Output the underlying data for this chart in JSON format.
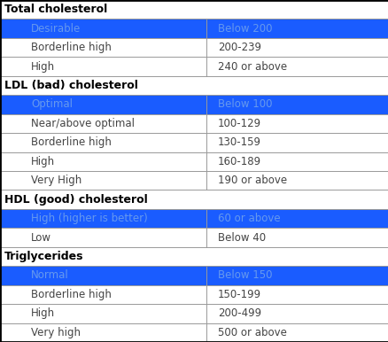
{
  "figsize": [
    4.39,
    3.86
  ],
  "dpi": 100,
  "bg_color": "#ffffff",
  "border_color": "#000000",
  "blue_color": "#1a5cff",
  "normal_text_color": "#444444",
  "blue_text_color": "#6699ee",
  "header_text_color": "#000000",
  "grid_color": "#999999",
  "rows": [
    {
      "type": "header",
      "col1": "Total cholesterol",
      "col2": ""
    },
    {
      "type": "blue",
      "col1": "Desirable",
      "col2": "Below 200"
    },
    {
      "type": "normal",
      "col1": "Borderline high",
      "col2": "200-239"
    },
    {
      "type": "normal",
      "col1": "High",
      "col2": "240 or above"
    },
    {
      "type": "header",
      "col1": "LDL (bad) cholesterol",
      "col2": ""
    },
    {
      "type": "blue",
      "col1": "Optimal",
      "col2": "Below 100"
    },
    {
      "type": "normal",
      "col1": "Near/above optimal",
      "col2": "100-129"
    },
    {
      "type": "normal",
      "col1": "Borderline high",
      "col2": "130-159"
    },
    {
      "type": "normal",
      "col1": "High",
      "col2": "160-189"
    },
    {
      "type": "normal",
      "col1": "Very High",
      "col2": "190 or above"
    },
    {
      "type": "header",
      "col1": "HDL (good) cholesterol",
      "col2": ""
    },
    {
      "type": "blue",
      "col1": "High (higher is better)",
      "col2": "60 or above"
    },
    {
      "type": "normal",
      "col1": "Low",
      "col2": "Below 40"
    },
    {
      "type": "header",
      "col1": "Triglycerides",
      "col2": ""
    },
    {
      "type": "blue",
      "col1": "Normal",
      "col2": "Below 150"
    },
    {
      "type": "normal",
      "col1": "Borderline high",
      "col2": "150-199"
    },
    {
      "type": "normal",
      "col1": "High",
      "col2": "200-499"
    },
    {
      "type": "normal",
      "col1": "Very high",
      "col2": "500 or above"
    }
  ],
  "header_fontsize": 9.0,
  "cell_fontsize": 8.5,
  "col_split": 0.53,
  "indent_header": 0.012,
  "indent_cell": 0.08
}
